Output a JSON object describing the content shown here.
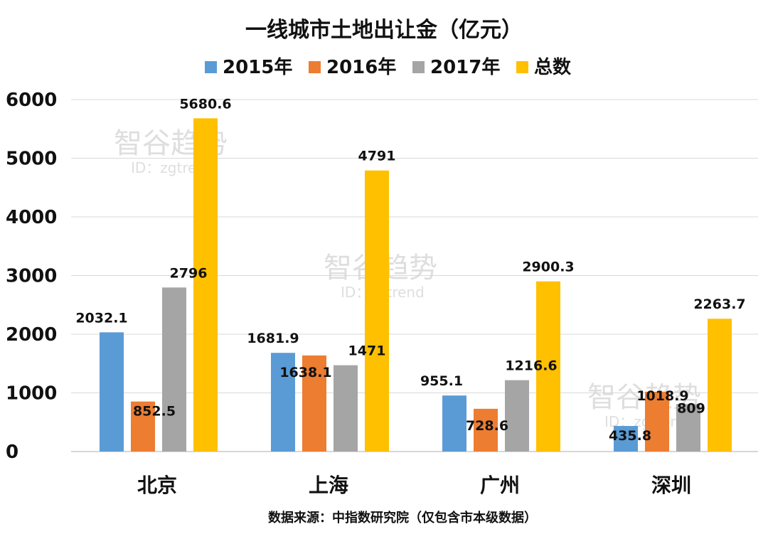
{
  "chart_data": {
    "type": "bar",
    "title": "一线城市土地出让金（亿元）",
    "categories": [
      "北京",
      "上海",
      "广州",
      "深圳"
    ],
    "series": [
      {
        "name": "2015年",
        "color": "#5b9bd5",
        "values": [
          2032.1,
          1681.9,
          955.1,
          435.8
        ],
        "labels": [
          "2032.1",
          "1681.9",
          "955.1",
          "435.8"
        ]
      },
      {
        "name": "2016年",
        "color": "#ed7d31",
        "values": [
          852.5,
          1638.1,
          728.6,
          1018.9
        ],
        "labels": [
          "852.5",
          "1638.1",
          "728.6",
          "1018.9"
        ]
      },
      {
        "name": "2017年",
        "color": "#a5a5a5",
        "values": [
          2796,
          1471,
          1216.6,
          809
        ],
        "labels": [
          "2796",
          "1471",
          "1216.6",
          "809"
        ]
      },
      {
        "name": "总数",
        "color": "#ffc000",
        "values": [
          5680.6,
          4791,
          2900.3,
          2263.7
        ],
        "labels": [
          "5680.6",
          "4791",
          "2900.3",
          "2263.7"
        ]
      }
    ],
    "ylim": [
      0,
      6000
    ],
    "yticks": [
      "0",
      "1000",
      "2000",
      "3000",
      "4000",
      "5000",
      "6000"
    ],
    "xlabel": "",
    "ylabel": "",
    "legend_position": "top",
    "grid": true,
    "source": "数据来源：中指数研究院（仅包含市本级数据）"
  },
  "watermark": {
    "name": "智谷趋势",
    "id": "ID：zgtrend"
  }
}
